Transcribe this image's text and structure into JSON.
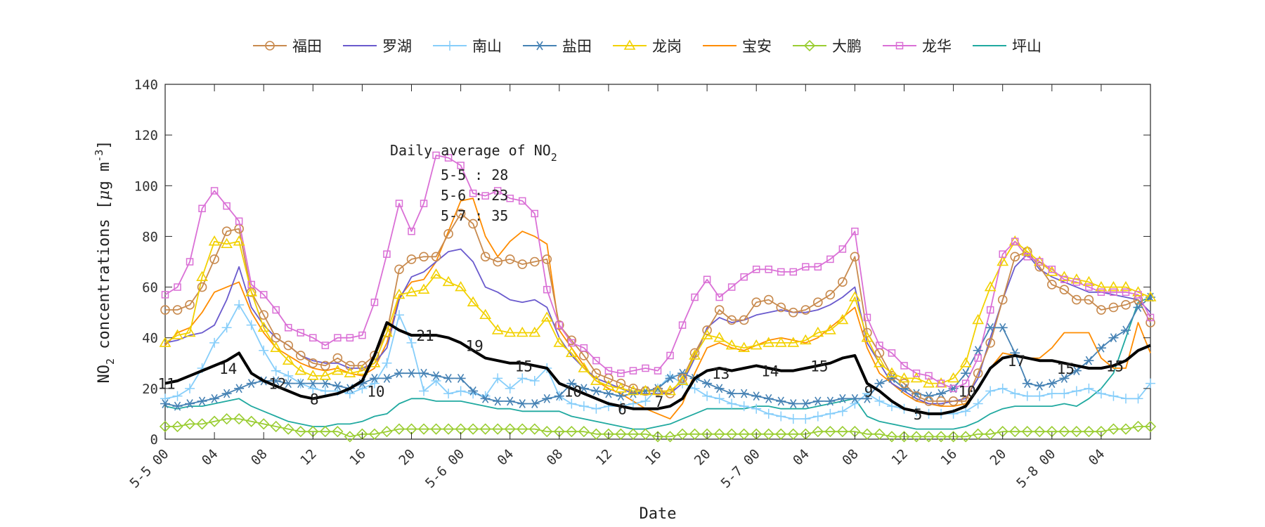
{
  "chart_data": {
    "type": "line",
    "xlabel": "Date",
    "ylabel": "NO2 concentrations [μg m-3]",
    "ylabel_parts": {
      "base": "NO",
      "sub": "2",
      "mid": " concentrations [",
      "mu": "μ",
      "unit": "g m",
      "sup": "-3",
      "end": "]"
    },
    "ylim": [
      0,
      140
    ],
    "yticks": [
      0,
      20,
      40,
      60,
      80,
      100,
      120,
      140
    ],
    "xlim": [
      0,
      80
    ],
    "x_unit": "hours since 5-5 00",
    "xticks": [
      {
        "x": 0,
        "label": "5-5 00"
      },
      {
        "x": 4,
        "label": "04"
      },
      {
        "x": 8,
        "label": "08"
      },
      {
        "x": 12,
        "label": "12"
      },
      {
        "x": 16,
        "label": "16"
      },
      {
        "x": 20,
        "label": "20"
      },
      {
        "x": 24,
        "label": "5-6 00"
      },
      {
        "x": 28,
        "label": "04"
      },
      {
        "x": 32,
        "label": "08"
      },
      {
        "x": 36,
        "label": "12"
      },
      {
        "x": 40,
        "label": "16"
      },
      {
        "x": 44,
        "label": "20"
      },
      {
        "x": 48,
        "label": "5-7 00"
      },
      {
        "x": 52,
        "label": "04"
      },
      {
        "x": 56,
        "label": "08"
      },
      {
        "x": 60,
        "label": "12"
      },
      {
        "x": 64,
        "label": "16"
      },
      {
        "x": 68,
        "label": "20"
      },
      {
        "x": 72,
        "label": "5-8 00"
      },
      {
        "x": 76,
        "label": "04"
      }
    ],
    "grid": false,
    "legend_position": "top",
    "annotation": {
      "title_base": "Daily average of NO",
      "title_sub": "2",
      "lines": [
        "5-5 : 28",
        "5-6 : 23",
        "5-7 : 35"
      ]
    },
    "series": [
      {
        "name": "福田",
        "color": "#C88A4E",
        "marker": "circle",
        "values": [
          51,
          51,
          53,
          60,
          71,
          82,
          83,
          58,
          49,
          40,
          37,
          33,
          30,
          29,
          32,
          29,
          29,
          33,
          42,
          67,
          71,
          72,
          72,
          81,
          89,
          85,
          72,
          70,
          71,
          69,
          70,
          71,
          45,
          39,
          33,
          26,
          24,
          22,
          20,
          19,
          19,
          18,
          24,
          34,
          43,
          51,
          47,
          47,
          54,
          55,
          52,
          50,
          51,
          54,
          57,
          62,
          72,
          42,
          34,
          25,
          22,
          17,
          15,
          15,
          15,
          15,
          26,
          38,
          55,
          72,
          74,
          68,
          61,
          59,
          55,
          55,
          51,
          52,
          53,
          55,
          46
        ]
      },
      {
        "name": "罗湖",
        "color": "#6A5ACD",
        "marker": "none",
        "values": [
          38,
          39,
          41,
          42,
          45,
          55,
          68,
          52,
          45,
          40,
          37,
          33,
          31,
          30,
          30,
          28,
          28,
          30,
          36,
          55,
          64,
          66,
          70,
          74,
          75,
          70,
          60,
          58,
          55,
          54,
          55,
          52,
          40,
          33,
          28,
          24,
          22,
          20,
          18,
          18,
          18,
          18,
          22,
          32,
          44,
          48,
          46,
          47,
          49,
          50,
          51,
          50,
          50,
          51,
          53,
          56,
          60,
          38,
          30,
          22,
          19,
          16,
          14,
          14,
          15,
          16,
          24,
          40,
          55,
          68,
          73,
          67,
          64,
          62,
          60,
          58,
          58,
          57,
          56,
          55,
          50
        ]
      },
      {
        "name": "南山",
        "color": "#87CEFA",
        "marker": "plus",
        "values": [
          16,
          17,
          20,
          28,
          38,
          44,
          53,
          45,
          35,
          27,
          25,
          22,
          20,
          19,
          19,
          18,
          20,
          22,
          30,
          49,
          38,
          19,
          23,
          18,
          19,
          18,
          17,
          24,
          20,
          24,
          23,
          28,
          17,
          14,
          13,
          12,
          13,
          13,
          14,
          15,
          20,
          25,
          22,
          20,
          17,
          16,
          14,
          13,
          12,
          10,
          9,
          8,
          8,
          9,
          10,
          11,
          14,
          18,
          15,
          13,
          12,
          11,
          10,
          10,
          10,
          11,
          14,
          19,
          20,
          18,
          17,
          17,
          18,
          18,
          19,
          20,
          18,
          17,
          16,
          16,
          22
        ]
      },
      {
        "name": "盐田",
        "color": "#4682B4",
        "marker": "asterisk",
        "values": [
          14,
          13,
          14,
          15,
          16,
          18,
          20,
          22,
          23,
          23,
          22,
          22,
          22,
          22,
          21,
          20,
          22,
          24,
          24,
          26,
          26,
          26,
          25,
          24,
          24,
          19,
          16,
          15,
          15,
          14,
          14,
          16,
          17,
          22,
          20,
          19,
          18,
          17,
          18,
          19,
          20,
          24,
          26,
          24,
          22,
          20,
          18,
          18,
          17,
          16,
          15,
          14,
          14,
          15,
          15,
          16,
          16,
          16,
          22,
          24,
          20,
          18,
          17,
          18,
          20,
          26,
          35,
          44,
          44,
          34,
          22,
          21,
          22,
          24,
          27,
          31,
          36,
          40,
          43,
          52,
          56
        ]
      },
      {
        "name": "龙岗",
        "color": "#F2D100",
        "marker": "triangle",
        "values": [
          38,
          41,
          42,
          64,
          78,
          77,
          78,
          58,
          44,
          36,
          31,
          27,
          25,
          25,
          27,
          26,
          27,
          30,
          42,
          57,
          58,
          59,
          65,
          62,
          60,
          54,
          49,
          43,
          42,
          42,
          42,
          48,
          38,
          34,
          28,
          23,
          21,
          20,
          19,
          19,
          19,
          19,
          23,
          33,
          41,
          40,
          37,
          36,
          37,
          38,
          38,
          38,
          39,
          42,
          43,
          47,
          56,
          40,
          30,
          26,
          24,
          24,
          22,
          22,
          24,
          30,
          47,
          60,
          70,
          78,
          74,
          70,
          66,
          64,
          63,
          62,
          60,
          60,
          60,
          58,
          56
        ]
      },
      {
        "name": "宝安",
        "color": "#FF8C00",
        "marker": "none",
        "values": [
          37,
          42,
          44,
          50,
          58,
          60,
          62,
          50,
          42,
          36,
          33,
          30,
          28,
          27,
          28,
          26,
          25,
          28,
          38,
          56,
          62,
          63,
          70,
          82,
          94,
          95,
          80,
          72,
          78,
          82,
          80,
          77,
          43,
          36,
          29,
          23,
          20,
          18,
          15,
          12,
          10,
          8,
          14,
          26,
          36,
          38,
          36,
          35,
          37,
          39,
          40,
          39,
          38,
          40,
          44,
          48,
          52,
          36,
          26,
          22,
          18,
          15,
          14,
          13,
          13,
          14,
          20,
          28,
          34,
          33,
          32,
          32,
          36,
          42,
          42,
          42,
          32,
          28,
          28,
          46,
          34
        ]
      },
      {
        "name": "大鹏",
        "color": "#9ACD32",
        "marker": "diamond",
        "values": [
          5,
          5,
          6,
          6,
          7,
          8,
          8,
          7,
          6,
          5,
          4,
          3,
          3,
          3,
          3,
          1,
          2,
          2,
          3,
          4,
          4,
          4,
          4,
          4,
          4,
          4,
          4,
          4,
          4,
          4,
          4,
          3,
          3,
          3,
          3,
          2,
          2,
          2,
          2,
          2,
          1,
          1,
          2,
          2,
          2,
          2,
          2,
          2,
          2,
          2,
          2,
          2,
          2,
          3,
          3,
          3,
          3,
          2,
          2,
          1,
          1,
          1,
          1,
          1,
          1,
          1,
          2,
          2,
          3,
          3,
          3,
          3,
          3,
          3,
          3,
          3,
          3,
          4,
          4,
          5,
          5
        ]
      },
      {
        "name": "龙华",
        "color": "#DA70D6",
        "marker": "square",
        "values": [
          57,
          60,
          70,
          91,
          98,
          92,
          86,
          61,
          57,
          51,
          44,
          42,
          40,
          37,
          40,
          40,
          41,
          54,
          73,
          93,
          82,
          93,
          112,
          111,
          108,
          97,
          96,
          98,
          95,
          94,
          89,
          59,
          45,
          38,
          36,
          31,
          27,
          26,
          27,
          28,
          27,
          33,
          45,
          56,
          63,
          56,
          60,
          64,
          67,
          67,
          66,
          66,
          68,
          68,
          71,
          75,
          82,
          48,
          37,
          34,
          29,
          26,
          25,
          22,
          20,
          22,
          32,
          51,
          73,
          78,
          72,
          70,
          67,
          63,
          62,
          60,
          58,
          58,
          58,
          57,
          48
        ]
      },
      {
        "name": "坪山",
        "color": "#20A9A0",
        "marker": "none",
        "values": [
          13,
          12,
          13,
          13,
          14,
          15,
          16,
          13,
          11,
          9,
          7,
          6,
          5,
          5,
          6,
          6,
          7,
          9,
          10,
          14,
          16,
          16,
          15,
          15,
          15,
          14,
          13,
          12,
          12,
          11,
          11,
          11,
          11,
          9,
          8,
          7,
          6,
          5,
          4,
          4,
          5,
          6,
          8,
          10,
          12,
          12,
          12,
          12,
          13,
          13,
          12,
          12,
          12,
          13,
          14,
          15,
          16,
          9,
          7,
          6,
          5,
          4,
          4,
          4,
          4,
          5,
          7,
          10,
          12,
          13,
          13,
          13,
          13,
          14,
          13,
          16,
          20,
          26,
          40,
          54,
          56
        ]
      },
      {
        "name": "",
        "color": "#000000",
        "marker": "none",
        "role": "average",
        "values": [
          22,
          23,
          25,
          27,
          29,
          31,
          34,
          26,
          23,
          21,
          19,
          17,
          16,
          17,
          18,
          20,
          23,
          33,
          46,
          43,
          41,
          41,
          41,
          40,
          38,
          35,
          32,
          31,
          30,
          30,
          29,
          28,
          22,
          20,
          18,
          16,
          14,
          13,
          12,
          12,
          12,
          13,
          16,
          24,
          27,
          28,
          27,
          28,
          29,
          28,
          27,
          27,
          28,
          29,
          30,
          32,
          33,
          22,
          19,
          15,
          12,
          11,
          10,
          10,
          11,
          13,
          20,
          28,
          32,
          33,
          32,
          31,
          31,
          30,
          29,
          28,
          28,
          29,
          31,
          35,
          37
        ]
      }
    ],
    "data_labels": [
      {
        "x": 0,
        "y": 22,
        "label": "11"
      },
      {
        "x": 5,
        "y": 28,
        "label": "14"
      },
      {
        "x": 9,
        "y": 22,
        "label": "12"
      },
      {
        "x": 12,
        "y": 16,
        "label": "8"
      },
      {
        "x": 17,
        "y": 19,
        "label": "10"
      },
      {
        "x": 21,
        "y": 41,
        "label": "21"
      },
      {
        "x": 25,
        "y": 37,
        "label": "19"
      },
      {
        "x": 29,
        "y": 29,
        "label": "15"
      },
      {
        "x": 33,
        "y": 19,
        "label": "10"
      },
      {
        "x": 37,
        "y": 12,
        "label": "6"
      },
      {
        "x": 40,
        "y": 15,
        "label": "7"
      },
      {
        "x": 45,
        "y": 26,
        "label": "13"
      },
      {
        "x": 49,
        "y": 27,
        "label": "14"
      },
      {
        "x": 53,
        "y": 29,
        "label": "15"
      },
      {
        "x": 57,
        "y": 19,
        "label": "9"
      },
      {
        "x": 61,
        "y": 10,
        "label": "5"
      },
      {
        "x": 65,
        "y": 19,
        "label": "10"
      },
      {
        "x": 69,
        "y": 31,
        "label": "17"
      },
      {
        "x": 73,
        "y": 28,
        "label": "15"
      },
      {
        "x": 77,
        "y": 29,
        "label": "15"
      }
    ]
  }
}
